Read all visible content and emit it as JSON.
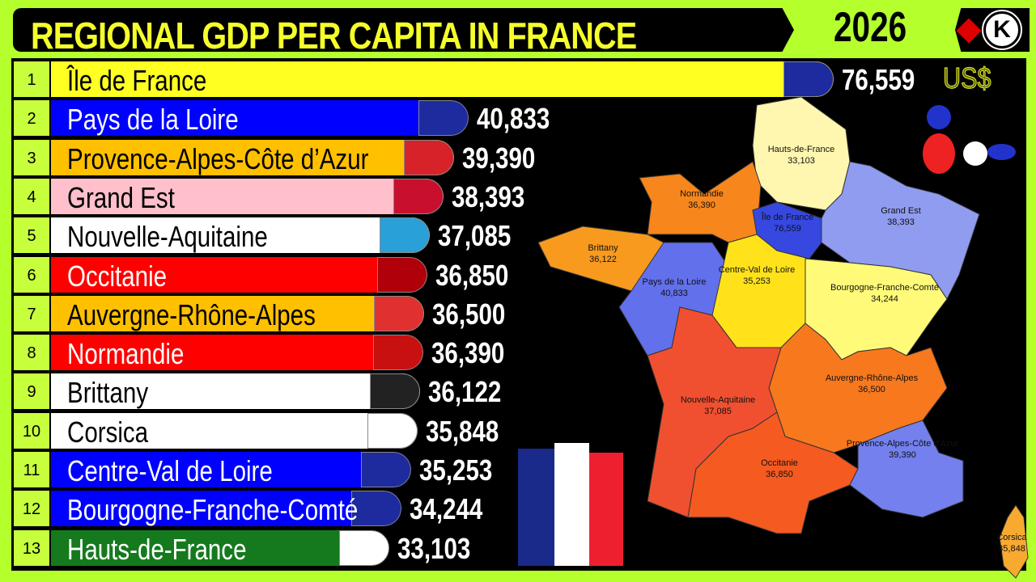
{
  "header": {
    "title": "REGIONAL GDP PER CAPITA IN FRANCE",
    "year": "2026",
    "logo_letter": "K"
  },
  "chart_data": {
    "type": "bar",
    "title": "REGIONAL GDP PER CAPITA IN FRANCE",
    "orientation": "horizontal",
    "unit": "US$",
    "ranks": [
      "1",
      "2",
      "3",
      "4",
      "5",
      "6",
      "7",
      "8",
      "9",
      "10",
      "11",
      "12",
      "13"
    ],
    "categories": [
      "Île de France",
      "Pays de la Loire",
      "Provence-Alpes-Côte d’Azur",
      "Grand Est",
      "Nouvelle-Aquitaine",
      "Occitanie",
      "Auvergne-Rhône-Alpes",
      "Normandie",
      "Brittany",
      "Corsica",
      "Centre-Val de Loire",
      "Bourgogne-Franche-Comté",
      "Hauts-de-France"
    ],
    "values": [
      76559,
      40833,
      39390,
      38393,
      37085,
      36850,
      36500,
      36390,
      36122,
      35848,
      35253,
      34244,
      33103
    ],
    "value_labels": [
      "76,559",
      "40,833",
      "39,390",
      "38,393",
      "37,085",
      "36,850",
      "36,500",
      "36,390",
      "36,122",
      "35,848",
      "35,253",
      "34,244",
      "33,103"
    ],
    "bar_colors": [
      "#ffff22",
      "#0000ff",
      "#ffc000",
      "#ffc0cb",
      "#ffffff",
      "#ff0000",
      "#ffc000",
      "#ff0000",
      "#ffffff",
      "#ffffff",
      "#0000ff",
      "#0000ff",
      "#157a1d"
    ],
    "label_colors": [
      "#000",
      "#fff",
      "#000",
      "#000",
      "#000",
      "#fff",
      "#000",
      "#fff",
      "#000",
      "#000",
      "#fff",
      "#fff",
      "#fff"
    ],
    "flag_colors": [
      "#1d2b9e",
      "#1d2b9e",
      "#d8222a",
      "#c8102e",
      "#2aa0d8",
      "#b0000a",
      "#e03030",
      "#c81010",
      "#222222",
      "#ffffff",
      "#1d2b9e",
      "#1d2b9e",
      "#ffffff"
    ]
  },
  "map": {
    "regions": [
      {
        "name": "Hauts-de-France",
        "value": "33,103",
        "color": "#fff7b0"
      },
      {
        "name": "Normandie",
        "value": "36,390",
        "color": "#f7861c"
      },
      {
        "name": "Brittany",
        "value": "36,122",
        "color": "#f89a1e"
      },
      {
        "name": "Pays de la Loire",
        "value": "40,833",
        "color": "#6270ec"
      },
      {
        "name": "Centre-Val de Loire",
        "value": "35,253",
        "color": "#ffe21a"
      },
      {
        "name": "Île de France",
        "value": "76,559",
        "color": "#3648e0"
      },
      {
        "name": "Grand Est",
        "value": "38,393",
        "color": "#909cf0"
      },
      {
        "name": "Bourgogne-Franche-Comté",
        "value": "34,244",
        "color": "#fffb78"
      },
      {
        "name": "Auvergne-Rhône-Alpes",
        "value": "36,500",
        "color": "#f8781e"
      },
      {
        "name": "Nouvelle-Aquitaine",
        "value": "37,085",
        "color": "#f05030"
      },
      {
        "name": "Occitanie",
        "value": "36,850",
        "color": "#f55a20"
      },
      {
        "name": "Provence-Alpes-Côte d'Azur",
        "value": "39,390",
        "color": "#7480ee"
      },
      {
        "name": "Corsica",
        "value": "35,848",
        "color": "#f8aa30"
      }
    ]
  }
}
